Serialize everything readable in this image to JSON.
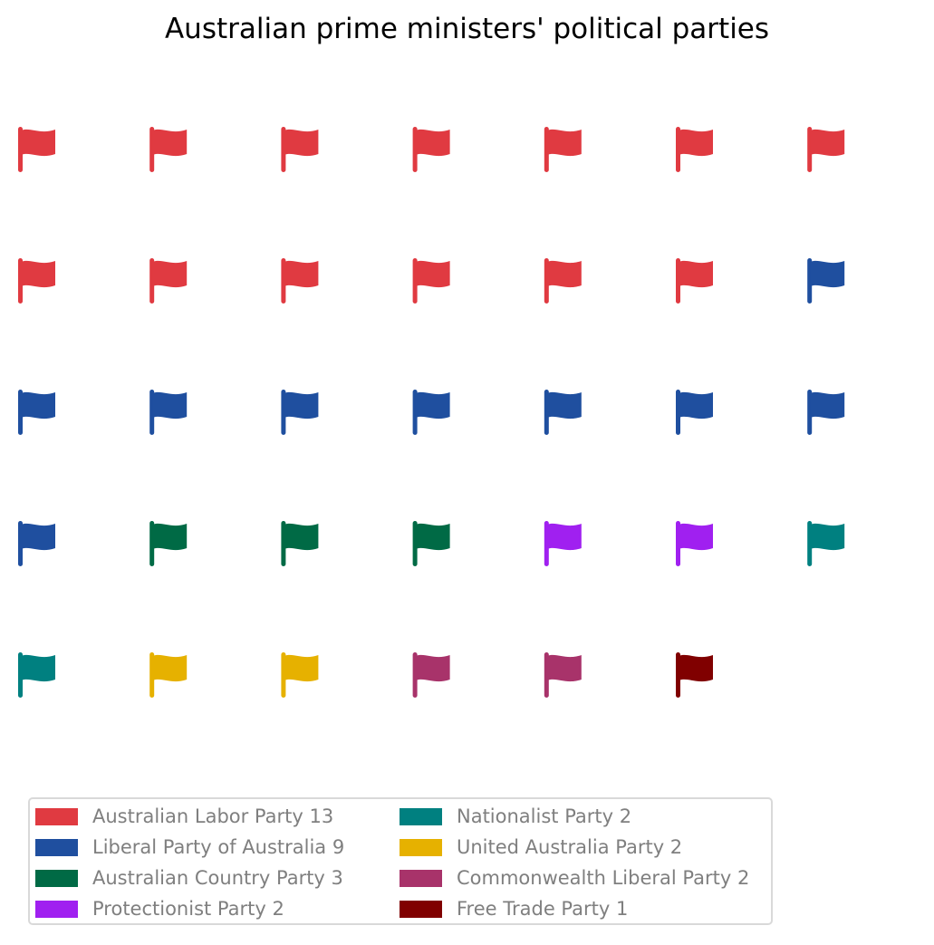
{
  "chart_data": {
    "type": "waffle",
    "title": "Australian prime ministers' political parties",
    "icon": "flag-icon",
    "rows": 5,
    "columns": 7,
    "categories": [
      {
        "name": "Australian Labor Party",
        "value": 13,
        "color": "#e03a41",
        "legend_label": "Australian Labor Party 13"
      },
      {
        "name": "Liberal Party of Australia",
        "value": 9,
        "color": "#1f4f9f",
        "legend_label": "Liberal Party of Australia 9"
      },
      {
        "name": "Australian Country Party",
        "value": 3,
        "color": "#006a45",
        "legend_label": "Australian Country Party 3"
      },
      {
        "name": "Protectionist Party",
        "value": 2,
        "color": "#a020f0",
        "legend_label": "Protectionist Party 2"
      },
      {
        "name": "Nationalist Party",
        "value": 2,
        "color": "#008080",
        "legend_label": "Nationalist Party 2"
      },
      {
        "name": "United Australia Party",
        "value": 2,
        "color": "#e6b100",
        "legend_label": "United Australia Party 2"
      },
      {
        "name": "Commonwealth Liberal Party",
        "value": 2,
        "color": "#a8336a",
        "legend_label": "Commonwealth Liberal Party 2"
      },
      {
        "name": "Free Trade Party",
        "value": 1,
        "color": "#800000",
        "legend_label": "Free Trade Party 1"
      }
    ],
    "legend_placement": "bottom-left",
    "legend_columns": 2
  }
}
